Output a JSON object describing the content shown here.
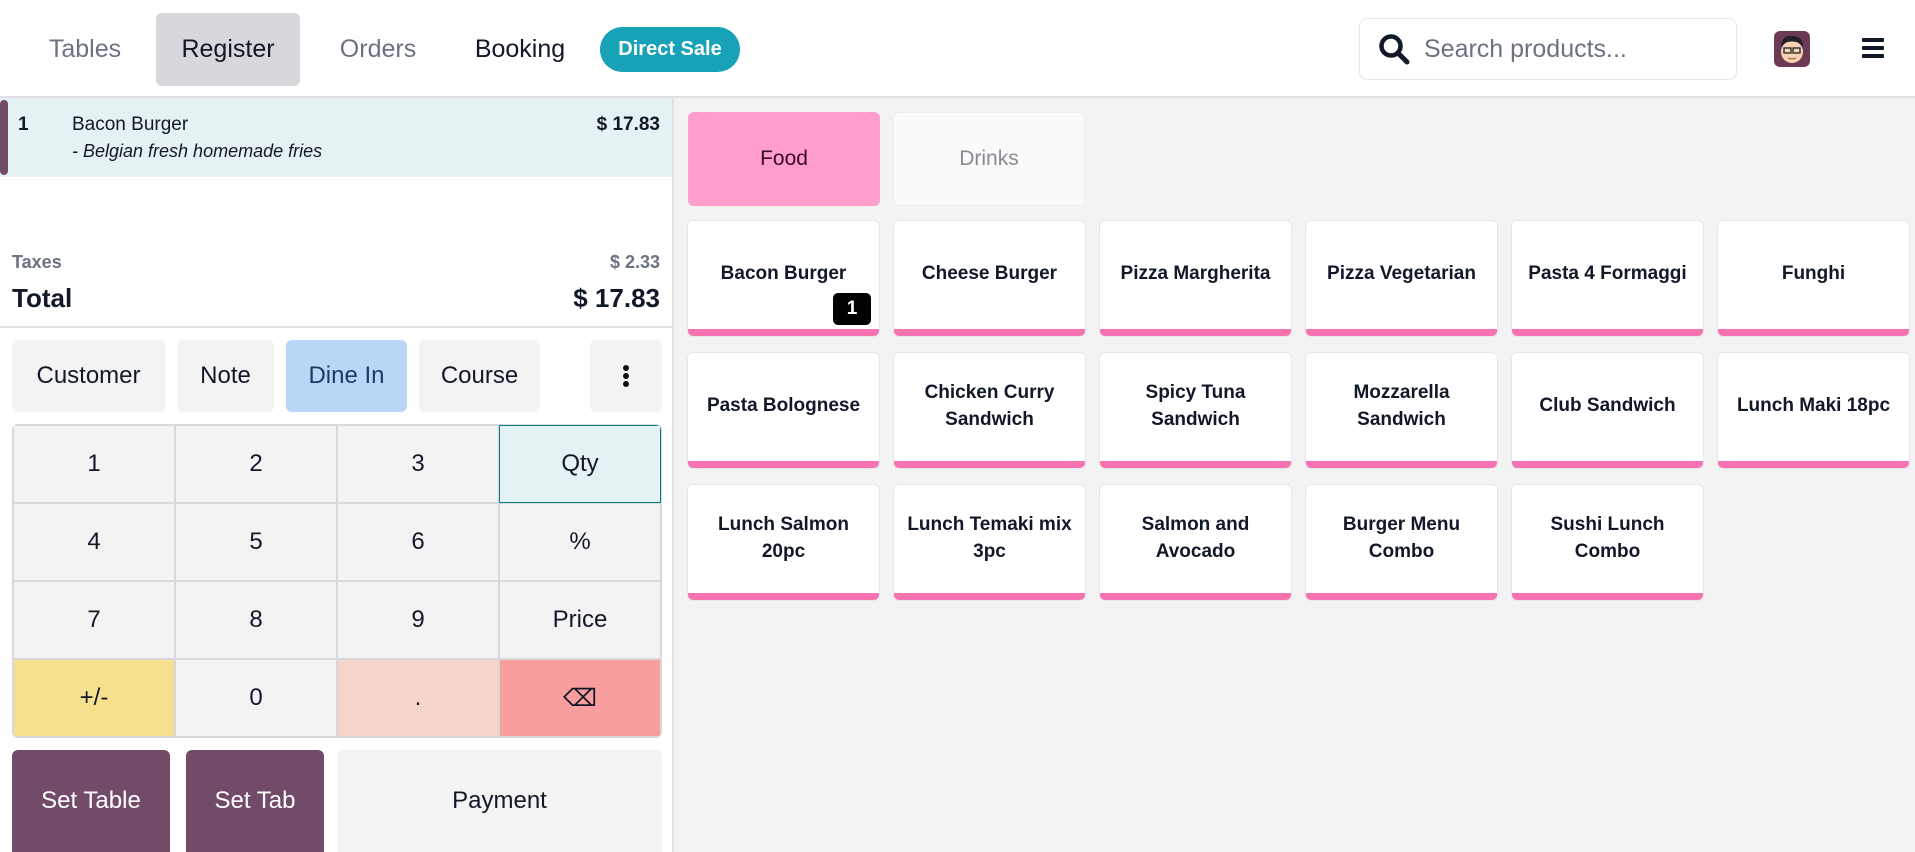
{
  "header": {
    "nav": [
      {
        "label": "Tables",
        "active": false
      },
      {
        "label": "Register",
        "active": true
      },
      {
        "label": "Orders",
        "active": false
      },
      {
        "label": "Booking",
        "active": false
      }
    ],
    "direct_sale": "Direct Sale",
    "search_placeholder": "Search products...",
    "icons": {
      "search": "search-icon",
      "avatar": "user-avatar",
      "menu": "hamburger-icon"
    }
  },
  "order": {
    "lines": [
      {
        "qty": "1",
        "name": "Bacon Burger",
        "note": "- Belgian fresh homemade fries",
        "price": "$ 17.83"
      }
    ],
    "taxes_label": "Taxes",
    "taxes_value": "$ 2.33",
    "total_label": "Total",
    "total_value": "$ 17.83"
  },
  "actions": {
    "customer": "Customer",
    "note": "Note",
    "dine_in": "Dine In",
    "course": "Course",
    "more_icon": "vertical-dots-icon"
  },
  "numpad": [
    "1",
    "2",
    "3",
    "Qty",
    "4",
    "5",
    "6",
    "%",
    "7",
    "8",
    "9",
    "Price",
    "+/-",
    "0",
    ".",
    "⌫"
  ],
  "bottom": {
    "set_table": "Set Table",
    "set_tab": "Set Tab",
    "payment": "Payment"
  },
  "categories": [
    {
      "label": "Food",
      "active": true
    },
    {
      "label": "Drinks",
      "active": false
    }
  ],
  "products": [
    {
      "name": "Bacon Burger",
      "qty": "1"
    },
    {
      "name": "Cheese Burger"
    },
    {
      "name": "Pizza Margherita"
    },
    {
      "name": "Pizza Vegetarian"
    },
    {
      "name": "Pasta 4 Formaggi"
    },
    {
      "name": "Funghi"
    },
    {
      "name": "Pasta Bolognese"
    },
    {
      "name": "Chicken Curry Sandwich"
    },
    {
      "name": "Spicy Tuna Sandwich"
    },
    {
      "name": "Mozzarella Sandwich"
    },
    {
      "name": "Club Sandwich"
    },
    {
      "name": "Lunch Maki 18pc"
    },
    {
      "name": "Lunch Salmon 20pc"
    },
    {
      "name": "Lunch Temaki mix 3pc"
    },
    {
      "name": "Salmon and Avocado"
    },
    {
      "name": "Burger Menu Combo"
    },
    {
      "name": "Sushi Lunch Combo"
    }
  ],
  "colors": {
    "brand": "#714b67",
    "direct_sale": "#17a2b8",
    "food_category": "#ff9ecc",
    "product_strip": "#f672b1",
    "dine_in": "#b9d6f7",
    "plus_minus": "#f7e08d",
    "dot": "#f5d5ca",
    "backspace": "#f89e9e",
    "qty_active": "#e6f1f3"
  }
}
